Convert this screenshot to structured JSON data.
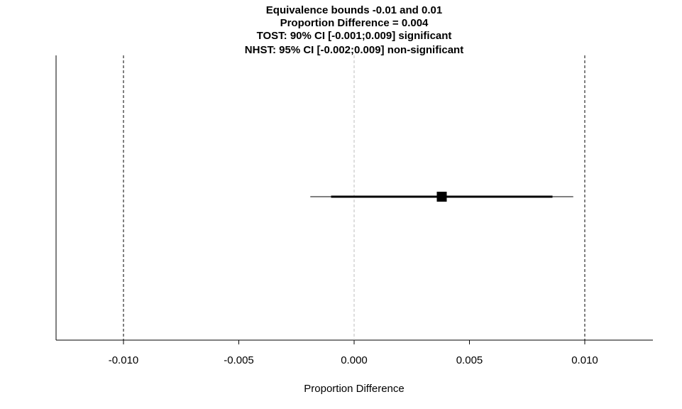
{
  "chart_data": {
    "type": "forest",
    "title_lines": [
      "Equivalence bounds -0.01 and 0.01",
      "Proportion Difference = 0.004",
      "TOST: 90% CI [-0.001;0.009] significant",
      "NHST: 95% CI [-0.002;0.009] non-significant"
    ],
    "xlabel": "Proportion Difference",
    "ylabel": "",
    "xlim": [
      -0.013,
      0.013
    ],
    "x_ticks": [
      -0.01,
      -0.005,
      0.0,
      0.005,
      0.01
    ],
    "x_tick_labels": [
      "-0.010",
      "-0.005",
      "0.000",
      "0.005",
      "0.010"
    ],
    "equivalence_bounds": [
      -0.01,
      0.01
    ],
    "reference_line": 0.0,
    "estimate": 0.0038,
    "ci_90": [
      -0.001,
      0.0086
    ],
    "ci_95": [
      -0.0019,
      0.0095
    ],
    "colors": {
      "bounds": "#000000",
      "reference": "#bebebe",
      "estimate": "#000000"
    }
  }
}
